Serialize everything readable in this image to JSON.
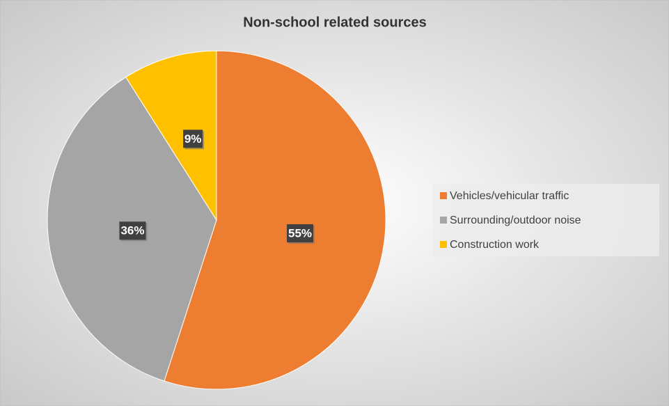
{
  "chart_data": {
    "type": "pie",
    "title": "Non-school  related sources",
    "categories": [
      "Vehicles/vehicular traffic",
      "Surrounding/outdoor noise",
      "Construction work"
    ],
    "values": [
      55,
      36,
      9
    ],
    "value_labels": [
      "55%",
      "36%",
      "9%"
    ],
    "colors": [
      "#ED7D31",
      "#A5A5A5",
      "#FFC000"
    ],
    "legend": "right"
  }
}
